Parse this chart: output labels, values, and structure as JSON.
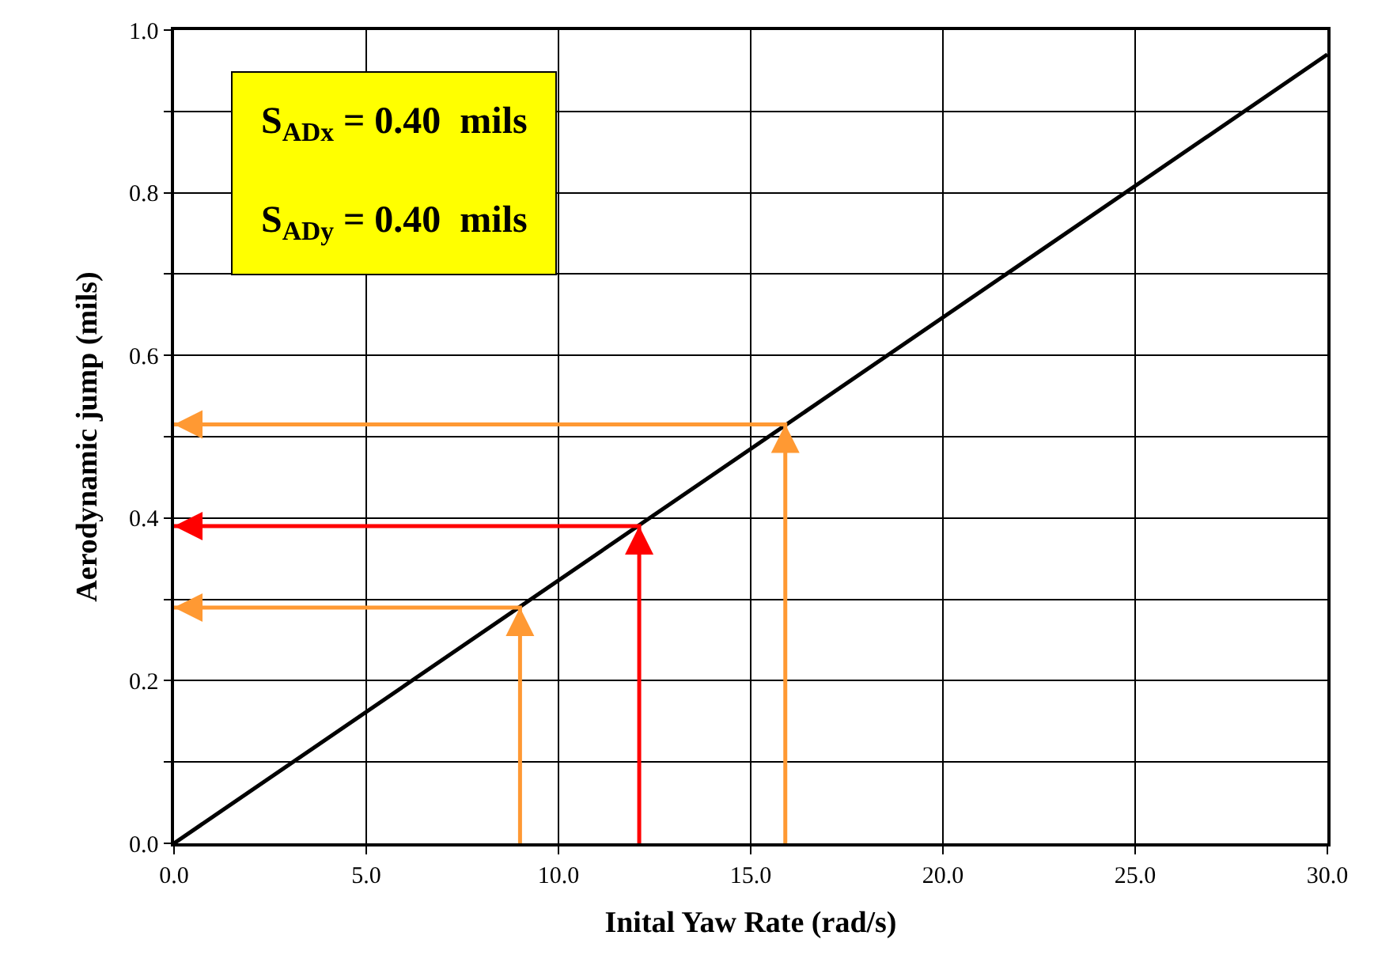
{
  "chart_data": {
    "type": "line",
    "xlabel": "Inital Yaw Rate (rad/s)",
    "ylabel": "Aerodynamic jump (mils)",
    "xlim": [
      0,
      30
    ],
    "ylim": [
      0,
      1
    ],
    "xticks": [
      {
        "value": 0,
        "label": "0.0"
      },
      {
        "value": 5,
        "label": "5.0"
      },
      {
        "value": 10,
        "label": "10.0"
      },
      {
        "value": 15,
        "label": "15.0"
      },
      {
        "value": 20,
        "label": "20.0"
      },
      {
        "value": 25,
        "label": "25.0"
      },
      {
        "value": 30,
        "label": "30.0"
      }
    ],
    "yticks": [
      {
        "value": 0,
        "label": "0.0"
      },
      {
        "value": 0.1,
        "label": null
      },
      {
        "value": 0.2,
        "label": "0.2"
      },
      {
        "value": 0.3,
        "label": null
      },
      {
        "value": 0.4,
        "label": "0.4"
      },
      {
        "value": 0.5,
        "label": null
      },
      {
        "value": 0.6,
        "label": "0.6"
      },
      {
        "value": 0.7,
        "label": null
      },
      {
        "value": 0.8,
        "label": "0.8"
      },
      {
        "value": 0.9,
        "label": null
      },
      {
        "value": 1.0,
        "label": "1.0"
      }
    ],
    "grid": true,
    "series": [
      {
        "color": "#000000",
        "x": [
          0,
          30
        ],
        "values": [
          0,
          0.97
        ],
        "marker": "none"
      },
      {
        "color": "#ff9933",
        "x": [
          9,
          9,
          0
        ],
        "values": [
          0,
          0.29,
          0.29
        ],
        "marker": "none"
      },
      {
        "color": "#ff0000",
        "x": [
          12.1,
          12.1,
          0
        ],
        "values": [
          0,
          0.39,
          0.39
        ],
        "marker": "none"
      },
      {
        "color": "#ff9933",
        "x": [
          15.9,
          15.9,
          0
        ],
        "values": [
          0,
          0.515,
          0.515
        ],
        "marker": "none"
      }
    ],
    "annotations": [
      "S$_{ADx}$ = 0.40  mils",
      "S$_{ADy}$ = 0.40  mils"
    ]
  }
}
